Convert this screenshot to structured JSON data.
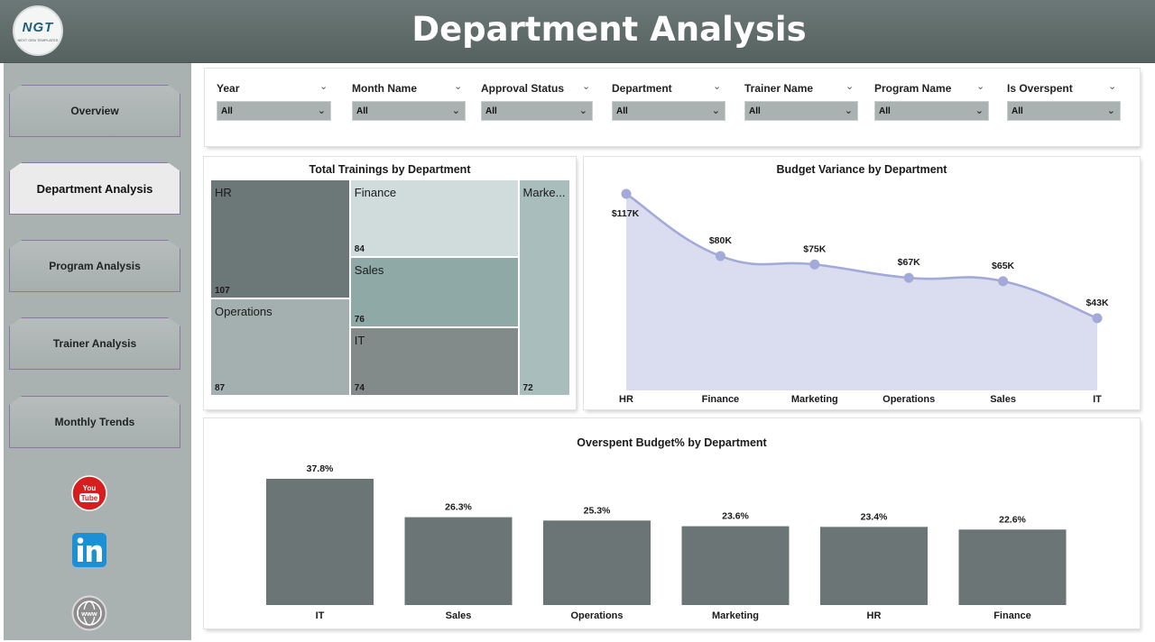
{
  "header": {
    "title": "Department Analysis",
    "logo_text": "NGT",
    "logo_subtext": "NEXT GEN TEMPLATES"
  },
  "sidebar": {
    "items": [
      {
        "label": "Overview",
        "active": false
      },
      {
        "label": "Department Analysis",
        "active": true
      },
      {
        "label": "Program Analysis",
        "active": false
      },
      {
        "label": "Trainer Analysis",
        "active": false
      },
      {
        "label": "Monthly Trends",
        "active": false
      }
    ],
    "social": [
      {
        "icon": "youtube-icon",
        "text": "You Tube",
        "color": "#d71e1e"
      },
      {
        "icon": "linkedin-icon",
        "text": "in",
        "color": "#1d8fd4"
      },
      {
        "icon": "globe-icon",
        "text": "www",
        "color": "#8d8d8d"
      }
    ]
  },
  "filters": [
    {
      "label": "Year",
      "value": "All"
    },
    {
      "label": "Month Name",
      "value": "All"
    },
    {
      "label": "Approval Status",
      "value": "All"
    },
    {
      "label": "Department",
      "value": "All"
    },
    {
      "label": "Trainer Name",
      "value": "All"
    },
    {
      "label": "Program Name",
      "value": "All"
    },
    {
      "label": "Is Overspent",
      "value": "All"
    }
  ],
  "treemap": {
    "title": "Total Trainings by Department",
    "tiles": [
      {
        "name": "HR",
        "value": 107,
        "color": "#6c7777"
      },
      {
        "name": "Finance",
        "value": 84,
        "color": "#d0dcdc"
      },
      {
        "name": "Marke...",
        "value": 72,
        "color": "#aabdbd"
      },
      {
        "name": "Sales",
        "value": 76,
        "color": "#8fa9a7"
      },
      {
        "name": "Operations",
        "value": 87,
        "color": "#a4b0af"
      },
      {
        "name": "IT",
        "value": 74,
        "color": "#838b8a"
      }
    ]
  },
  "chart_data": [
    {
      "type": "area",
      "title": "Budget Variance by Department",
      "categories": [
        "HR",
        "Finance",
        "Marketing",
        "Operations",
        "Sales",
        "IT"
      ],
      "values": [
        117,
        80,
        75,
        67,
        65,
        43
      ],
      "data_labels": [
        "$117K",
        "$80K",
        "$75K",
        "$67K",
        "$65K",
        "$43K"
      ],
      "unit": "$K",
      "ylim": [
        0,
        117
      ],
      "grid": false,
      "color": "#a4aad8",
      "fill": "#dadcef"
    },
    {
      "type": "bar",
      "title": "Overspent Budget% by Department",
      "categories": [
        "IT",
        "Sales",
        "Operations",
        "Marketing",
        "HR",
        "Finance"
      ],
      "values": [
        37.8,
        26.3,
        25.3,
        23.6,
        23.4,
        22.6
      ],
      "data_labels": [
        "37.8%",
        "26.3%",
        "25.3%",
        "23.6%",
        "23.4%",
        "22.6%"
      ],
      "ylim": [
        0,
        37.8
      ],
      "grid": false,
      "color": "#6b7575"
    }
  ]
}
